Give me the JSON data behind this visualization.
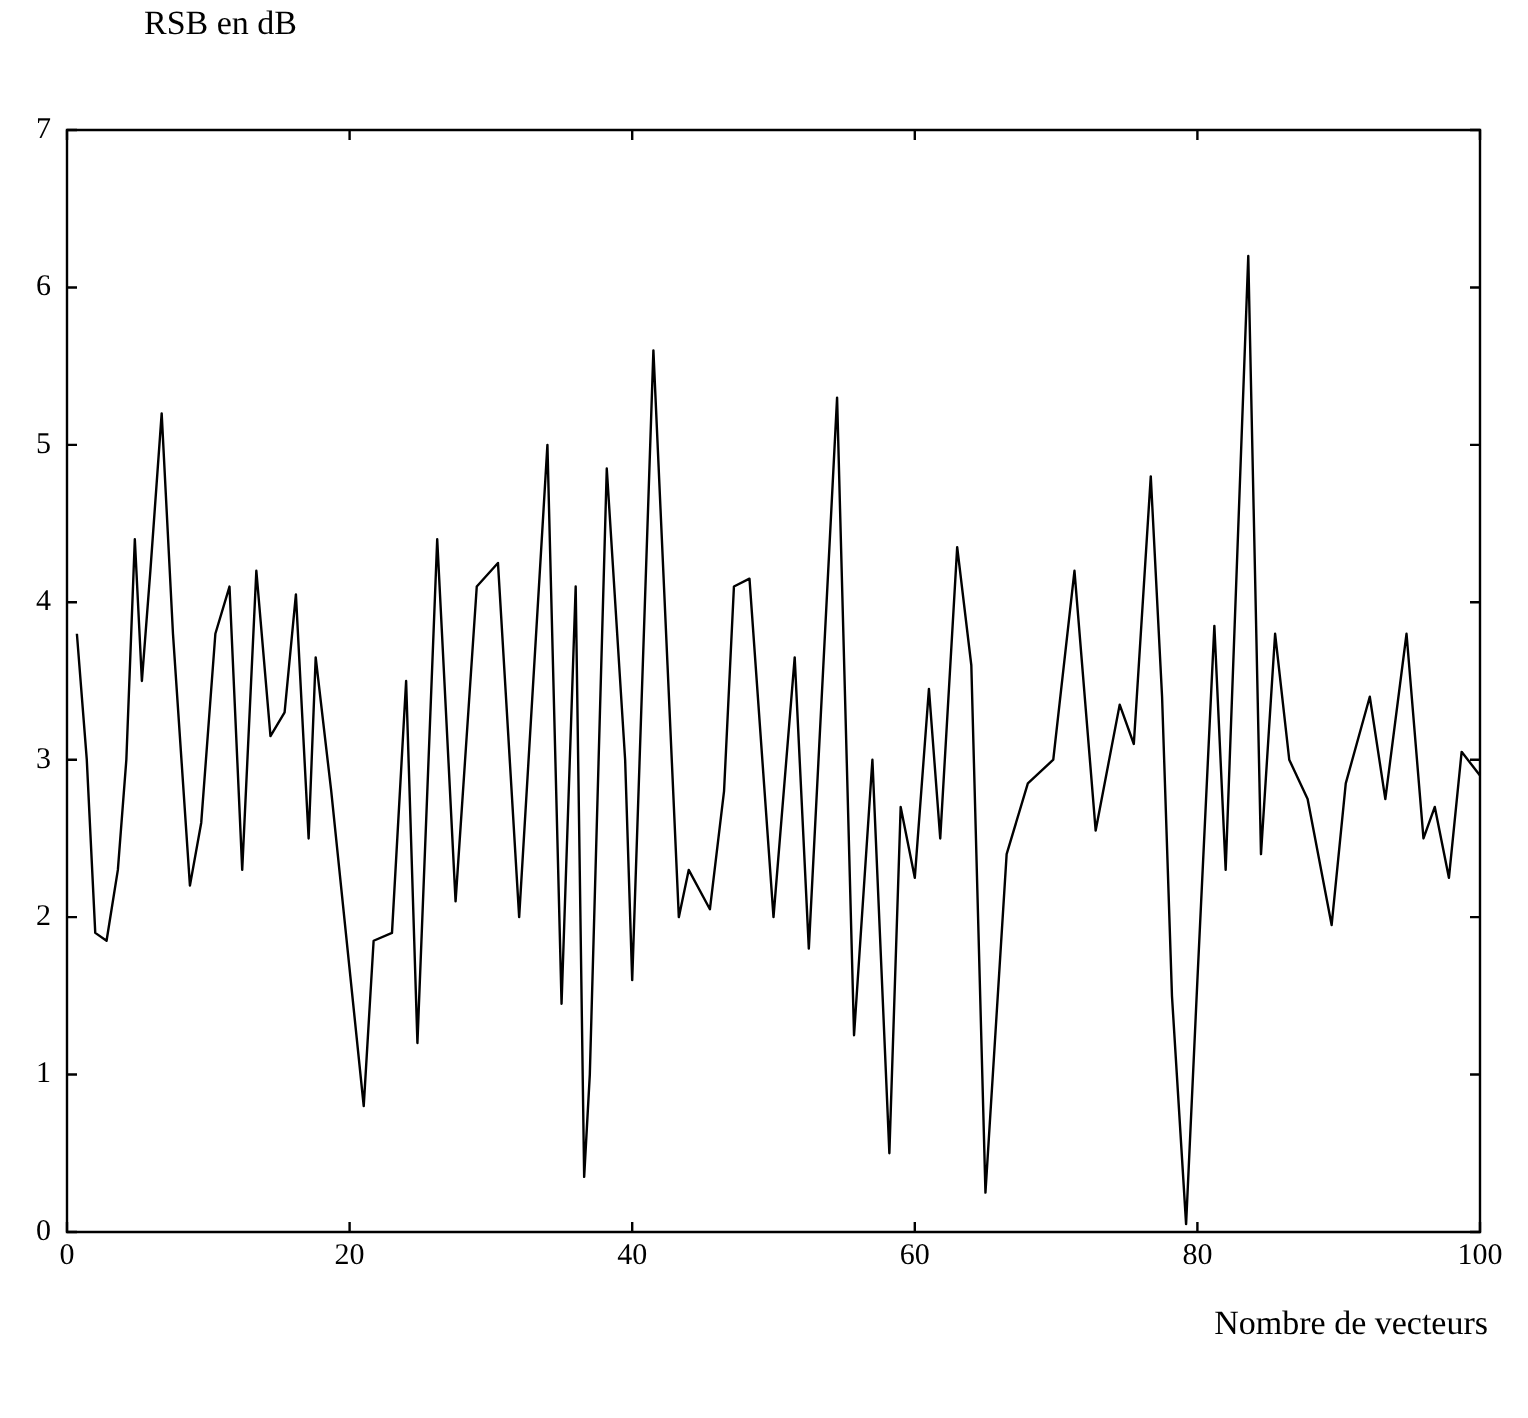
{
  "chart_data": {
    "type": "line",
    "xlabel": "Nombre de vecteurs",
    "ylabel": "RSB en dB",
    "series": [
      {
        "color": "#000000",
        "x": [
          0.7,
          1.4,
          2,
          2.8,
          3.6,
          4.2,
          4.8,
          5.3,
          5.9,
          6.7,
          7.5,
          8.7,
          9.5,
          10.5,
          11.5,
          12.4,
          13.4,
          14.4,
          15.4,
          16.2,
          17.1,
          17.6,
          18.7,
          21,
          21.7,
          23,
          24,
          24.8,
          26.2,
          27.5,
          29,
          30.5,
          32,
          34,
          35,
          36,
          36.6,
          37,
          38.2,
          39.5,
          40,
          41.5,
          42.5,
          43.3,
          44,
          45.5,
          46.5,
          47.2,
          48.3,
          50,
          51.5,
          52.5,
          54.5,
          55.7,
          57,
          58.2,
          59,
          60,
          61,
          61.8,
          63,
          64,
          65,
          66.5,
          68,
          69.8,
          71.3,
          72.8,
          74.5,
          75.5,
          76.7,
          77.5,
          78.2,
          79.2,
          80,
          81.2,
          82,
          83.6,
          84.5,
          85.5,
          86.5,
          87.8,
          89.5,
          90.5,
          92.2,
          93.3,
          94.8,
          96,
          96.8,
          97.8,
          98.7,
          100
        ],
        "values": [
          3.8,
          3.0,
          1.9,
          1.85,
          2.3,
          3.0,
          4.4,
          3.5,
          4.2,
          5.2,
          3.8,
          2.2,
          2.6,
          3.8,
          4.1,
          2.3,
          4.2,
          3.15,
          3.3,
          4.05,
          2.5,
          3.65,
          2.8,
          0.8,
          1.85,
          1.9,
          3.5,
          1.2,
          4.4,
          2.1,
          4.1,
          4.25,
          2.0,
          5.0,
          1.45,
          4.1,
          0.35,
          1.0,
          4.85,
          3.0,
          1.6,
          5.6,
          3.6,
          2.0,
          2.3,
          2.05,
          2.8,
          4.1,
          4.15,
          2.0,
          3.65,
          1.8,
          5.3,
          1.25,
          3.0,
          0.5,
          2.7,
          2.25,
          3.45,
          2.5,
          4.35,
          3.6,
          0.25,
          2.4,
          2.85,
          3.0,
          4.2,
          2.55,
          3.35,
          3.1,
          4.8,
          3.4,
          1.5,
          0.05,
          1.6,
          3.85,
          2.3,
          6.2,
          2.4,
          3.8,
          3.0,
          2.75,
          1.95,
          2.85,
          3.4,
          2.75,
          3.8,
          2.5,
          2.7,
          2.25,
          3.05,
          2.9
        ]
      }
    ],
    "xlim": [
      0,
      100
    ],
    "xticks": [
      0,
      20,
      40,
      60,
      80,
      100
    ],
    "ylim": [
      0,
      7
    ],
    "yticks": [
      0,
      1,
      2,
      3,
      4,
      5,
      6,
      7
    ],
    "grid": false,
    "legend": false,
    "marker": "none",
    "line_style": "solid"
  }
}
